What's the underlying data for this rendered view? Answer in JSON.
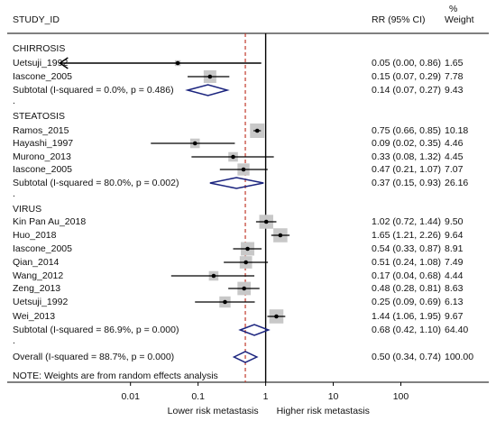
{
  "chart_data": {
    "type": "forest",
    "scale": "log",
    "x_ticks": [
      0.01,
      0.1,
      1,
      10,
      100
    ],
    "x_tick_labels": [
      "0.01",
      "0.1",
      "1",
      "10",
      "100"
    ],
    "null_line": 1,
    "overall_line": 0.5,
    "x_visible_range": [
      0.00015,
      2000
    ],
    "header": {
      "study_id": "STUDY_ID",
      "rr": "RR (95% CI)",
      "weight_top": "%",
      "weight_bottom": "Weight"
    },
    "x_left_label": "Lower risk metastasis",
    "x_right_label": "Higher risk metastasis",
    "note": "NOTE: Weights are from random effects analysis",
    "colors": {
      "ci_line": "#000000",
      "weight_box": "#c8c8c8",
      "diamond": "#1a237e",
      "null_line": "#000000",
      "overall_line": "#c0392b"
    },
    "groups": [
      {
        "name": "CHIRROSIS",
        "studies": [
          {
            "label": "Uetsuji_1992",
            "rr": 0.05,
            "lo": 0.0,
            "hi": 0.86,
            "ci_text": "0.05 (0.00, 0.86)",
            "weight": 1.65,
            "weight_text": "1.65",
            "clip_low": true
          },
          {
            "label": "Iascone_2005",
            "rr": 0.15,
            "lo": 0.07,
            "hi": 0.29,
            "ci_text": "0.15 (0.07, 0.29)",
            "weight": 7.78,
            "weight_text": "7.78"
          }
        ],
        "subtotal": {
          "label": "Subtotal  (I-squared = 0.0%, p = 0.486)",
          "rr": 0.14,
          "lo": 0.07,
          "hi": 0.27,
          "ci_text": "0.14 (0.07, 0.27)",
          "weight_text": "9.43"
        }
      },
      {
        "name": "STEATOSIS",
        "studies": [
          {
            "label": "Ramos_2015",
            "rr": 0.75,
            "lo": 0.66,
            "hi": 0.85,
            "ci_text": "0.75 (0.66, 0.85)",
            "weight": 10.18,
            "weight_text": "10.18"
          },
          {
            "label": "Hayashi_1997",
            "rr": 0.09,
            "lo": 0.02,
            "hi": 0.35,
            "ci_text": "0.09 (0.02, 0.35)",
            "weight": 4.46,
            "weight_text": "4.46"
          },
          {
            "label": "Murono_2013",
            "rr": 0.33,
            "lo": 0.08,
            "hi": 1.32,
            "ci_text": "0.33 (0.08, 1.32)",
            "weight": 4.45,
            "weight_text": "4.45"
          },
          {
            "label": "Iascone_2005",
            "rr": 0.47,
            "lo": 0.21,
            "hi": 1.07,
            "ci_text": "0.47 (0.21, 1.07)",
            "weight": 7.07,
            "weight_text": "7.07"
          }
        ],
        "subtotal": {
          "label": "Subtotal  (I-squared = 80.0%, p = 0.002)",
          "rr": 0.37,
          "lo": 0.15,
          "hi": 0.93,
          "ci_text": "0.37 (0.15, 0.93)",
          "weight_text": "26.16"
        }
      },
      {
        "name": "VIRUS",
        "studies": [
          {
            "label": "Kin Pan Au_2018",
            "rr": 1.02,
            "lo": 0.72,
            "hi": 1.44,
            "ci_text": "1.02 (0.72, 1.44)",
            "weight": 9.5,
            "weight_text": "9.50"
          },
          {
            "label": "Huo_2018",
            "rr": 1.65,
            "lo": 1.21,
            "hi": 2.26,
            "ci_text": "1.65 (1.21, 2.26)",
            "weight": 9.64,
            "weight_text": "9.64"
          },
          {
            "label": "Iascone_2005",
            "rr": 0.54,
            "lo": 0.33,
            "hi": 0.87,
            "ci_text": "0.54 (0.33, 0.87)",
            "weight": 8.91,
            "weight_text": "8.91"
          },
          {
            "label": "Qian_2014",
            "rr": 0.51,
            "lo": 0.24,
            "hi": 1.08,
            "ci_text": "0.51 (0.24, 1.08)",
            "weight": 7.49,
            "weight_text": "7.49"
          },
          {
            "label": "Wang_2012",
            "rr": 0.17,
            "lo": 0.04,
            "hi": 0.68,
            "ci_text": "0.17 (0.04, 0.68)",
            "weight": 4.44,
            "weight_text": "4.44"
          },
          {
            "label": "Zeng_2013",
            "rr": 0.48,
            "lo": 0.28,
            "hi": 0.81,
            "ci_text": "0.48 (0.28, 0.81)",
            "weight": 8.63,
            "weight_text": "8.63"
          },
          {
            "label": "Uetsuji_1992",
            "rr": 0.25,
            "lo": 0.09,
            "hi": 0.69,
            "ci_text": "0.25 (0.09, 0.69)",
            "weight": 6.13,
            "weight_text": "6.13"
          },
          {
            "label": "Wei_2013",
            "rr": 1.44,
            "lo": 1.06,
            "hi": 1.95,
            "ci_text": "1.44 (1.06, 1.95)",
            "weight": 9.67,
            "weight_text": "9.67"
          }
        ],
        "subtotal": {
          "label": "Subtotal  (I-squared = 86.9%, p = 0.000)",
          "rr": 0.68,
          "lo": 0.42,
          "hi": 1.1,
          "ci_text": "0.68 (0.42, 1.10)",
          "weight_text": "64.40"
        }
      }
    ],
    "overall": {
      "label": "Overall  (I-squared = 88.7%, p = 0.000)",
      "rr": 0.5,
      "lo": 0.34,
      "hi": 0.74,
      "ci_text": "0.50 (0.34, 0.74)",
      "weight_text": "100.00"
    }
  }
}
